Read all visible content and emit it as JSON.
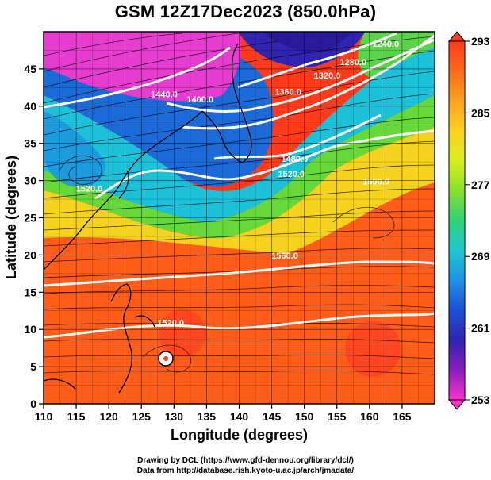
{
  "title": "GSM 12Z17Dec2023 (850.0hPa)",
  "map": {
    "lon_range": [
      110,
      170
    ],
    "lat_range": [
      0,
      50
    ],
    "x_ticks": [
      110,
      115,
      120,
      125,
      130,
      135,
      140,
      145,
      150,
      155,
      160,
      165
    ],
    "y_ticks": [
      0,
      5,
      10,
      15,
      20,
      25,
      30,
      35,
      40,
      45
    ],
    "xlabel": "Longitude (degrees)",
    "ylabel": "Latitude  (degrees)",
    "contour_labels": [
      {
        "text": "1440.0",
        "lon": 128.5,
        "lat": 41.2
      },
      {
        "text": "1400.0",
        "lon": 134.0,
        "lat": 40.5
      },
      {
        "text": "1360.0",
        "lon": 147.5,
        "lat": 41.5
      },
      {
        "text": "1320.0",
        "lon": 153.5,
        "lat": 43.7
      },
      {
        "text": "1280.0",
        "lon": 157.5,
        "lat": 45.5
      },
      {
        "text": "1240.0",
        "lon": 162.5,
        "lat": 48.0
      },
      {
        "text": "1480.0",
        "lon": 148.5,
        "lat": 32.5
      },
      {
        "text": "1520.0",
        "lon": 148.0,
        "lat": 30.5
      },
      {
        "text": "1520.0",
        "lon": 117.0,
        "lat": 28.5
      },
      {
        "text": "1560.0",
        "lon": 147.0,
        "lat": 19.5
      },
      {
        "text": "1520.0",
        "lon": 129.5,
        "lat": 10.5
      },
      {
        "text": "1500.0",
        "lon": 161.0,
        "lat": 29.5
      }
    ]
  },
  "colorbar": {
    "ticks": [
      "293",
      "285",
      "277",
      "269",
      "261",
      "253"
    ],
    "vmin": 253,
    "vmax": 293,
    "colors": [
      "#ff3b1c",
      "#ff6a1a",
      "#ffa21c",
      "#ffd21e",
      "#d8ef1c",
      "#88e02a",
      "#2fd27a",
      "#1cc8d0",
      "#1c92e8",
      "#1c50d8",
      "#3024b0",
      "#8a1cc0",
      "#ff33cc"
    ]
  },
  "credits": {
    "line1": "Drawing by DCL (https://www.gfd-dennou.org/library/dcl/)",
    "line2": "Data from http://database.rish.kyoto-u.ac.jp/arch/jmadata/"
  }
}
